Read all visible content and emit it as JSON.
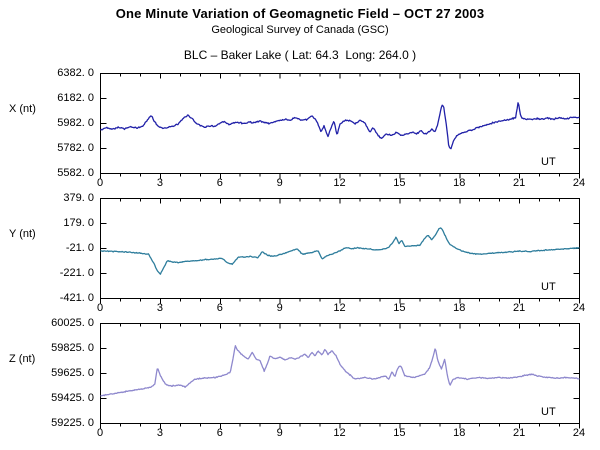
{
  "chart_data": {
    "type": "line",
    "title": "One Minute Variation of Geomagnetic Field – OCT 27 2003",
    "subtitle": "Geological Survey of Canada (GSC)",
    "station": "BLC – Baker Lake ( Lat: 64.3  Long: 264.0 )",
    "x": {
      "label": "UT",
      "range": [
        0,
        24
      ],
      "major_ticks": [
        0,
        3,
        6,
        9,
        12,
        15,
        18,
        21,
        24
      ],
      "minor_step": 1
    },
    "grid": false,
    "frame_color": "#000000",
    "panels": [
      {
        "id": "X",
        "ylabel": "X (nt)",
        "ylim": [
          5582,
          6382
        ],
        "ytick_values": [
          6382.0,
          6182.0,
          5982.0,
          5782.0,
          5582.0
        ],
        "ytick_labels": [
          "6382. 0",
          "6182. 0",
          "5982. 0",
          "5782. 0",
          "5582. 0"
        ],
        "color": "#2121a8",
        "noise_amp": 7,
        "seed": 42,
        "keypoints": [
          [
            0,
            5928
          ],
          [
            0.3,
            5950
          ],
          [
            0.6,
            5938
          ],
          [
            0.9,
            5952
          ],
          [
            1.2,
            5940
          ],
          [
            1.5,
            5955
          ],
          [
            1.8,
            5945
          ],
          [
            2.1,
            5958
          ],
          [
            2.35,
            6010
          ],
          [
            2.55,
            6048
          ],
          [
            2.7,
            5998
          ],
          [
            2.9,
            5958
          ],
          [
            3.1,
            5945
          ],
          [
            3.4,
            5952
          ],
          [
            3.7,
            5962
          ],
          [
            3.95,
            5985
          ],
          [
            4.15,
            6022
          ],
          [
            4.35,
            6048
          ],
          [
            4.55,
            6030
          ],
          [
            4.75,
            5990
          ],
          [
            5,
            5968
          ],
          [
            5.25,
            5952
          ],
          [
            5.5,
            5965
          ],
          [
            5.75,
            5958
          ],
          [
            6,
            5985
          ],
          [
            6.2,
            5995
          ],
          [
            6.45,
            5972
          ],
          [
            6.7,
            5988
          ],
          [
            6.95,
            5992
          ],
          [
            7.2,
            5980
          ],
          [
            7.45,
            5995
          ],
          [
            7.7,
            5988
          ],
          [
            7.95,
            6002
          ],
          [
            8.2,
            5992
          ],
          [
            8.45,
            5982
          ],
          [
            8.7,
            5995
          ],
          [
            9,
            6008
          ],
          [
            9.25,
            6015
          ],
          [
            9.5,
            6008
          ],
          [
            9.75,
            6030
          ],
          [
            10,
            6012
          ],
          [
            10.2,
            6006
          ],
          [
            10.4,
            6019
          ],
          [
            10.6,
            6046
          ],
          [
            10.85,
            5995
          ],
          [
            11.05,
            5915
          ],
          [
            11.2,
            5962
          ],
          [
            11.4,
            5875
          ],
          [
            11.55,
            5950
          ],
          [
            11.7,
            6005
          ],
          [
            11.85,
            5888
          ],
          [
            12,
            5978
          ],
          [
            12.25,
            6005
          ],
          [
            12.5,
            6005
          ],
          [
            12.75,
            5980
          ],
          [
            13,
            6005
          ],
          [
            13.25,
            5990
          ],
          [
            13.5,
            5912
          ],
          [
            13.65,
            5950
          ],
          [
            13.9,
            5888
          ],
          [
            14.1,
            5860
          ],
          [
            14.3,
            5898
          ],
          [
            14.6,
            5886
          ],
          [
            14.8,
            5912
          ],
          [
            15.1,
            5886
          ],
          [
            15.35,
            5900
          ],
          [
            15.6,
            5912
          ],
          [
            15.85,
            5898
          ],
          [
            16.05,
            5926
          ],
          [
            16.25,
            5898
          ],
          [
            16.45,
            5912
          ],
          [
            16.6,
            5938
          ],
          [
            16.75,
            5912
          ],
          [
            16.9,
            5978
          ],
          [
            17.1,
            6130
          ],
          [
            17.2,
            6110
          ],
          [
            17.32,
            5978
          ],
          [
            17.45,
            5800
          ],
          [
            17.55,
            5775
          ],
          [
            17.7,
            5850
          ],
          [
            17.85,
            5888
          ],
          [
            18,
            5898
          ],
          [
            18.3,
            5915
          ],
          [
            18.6,
            5930
          ],
          [
            18.9,
            5950
          ],
          [
            19.2,
            5962
          ],
          [
            19.5,
            5978
          ],
          [
            19.75,
            5992
          ],
          [
            20,
            6000
          ],
          [
            20.3,
            6010
          ],
          [
            20.6,
            6018
          ],
          [
            20.8,
            6030
          ],
          [
            20.93,
            6155
          ],
          [
            21.05,
            6040
          ],
          [
            21.2,
            6018
          ],
          [
            21.5,
            6012
          ],
          [
            21.8,
            6022
          ],
          [
            22.1,
            6015
          ],
          [
            22.4,
            6025
          ],
          [
            22.7,
            6018
          ],
          [
            23,
            6028
          ],
          [
            23.3,
            6020
          ],
          [
            23.6,
            6030
          ],
          [
            24,
            6032
          ]
        ]
      },
      {
        "id": "Y",
        "ylabel": "Y (nt)",
        "ylim": [
          -421,
          379
        ],
        "ytick_values": [
          379.0,
          179.0,
          -21.0,
          -221.0,
          -421.0
        ],
        "ytick_labels": [
          "379. 0",
          "179. 0",
          "-21. 0",
          "-221. 0",
          "-421. 0"
        ],
        "color": "#2e7d9c",
        "noise_amp": 4.5,
        "seed": 43,
        "keypoints": [
          [
            0,
            -39
          ],
          [
            0.5,
            -44
          ],
          [
            1,
            -47
          ],
          [
            1.5,
            -52
          ],
          [
            2,
            -58
          ],
          [
            2.4,
            -66
          ],
          [
            2.7,
            -147
          ],
          [
            2.85,
            -205
          ],
          [
            3,
            -225
          ],
          [
            3.15,
            -180
          ],
          [
            3.35,
            -119
          ],
          [
            3.6,
            -128
          ],
          [
            3.85,
            -133
          ],
          [
            4.25,
            -125
          ],
          [
            4.75,
            -119
          ],
          [
            5.25,
            -111
          ],
          [
            5.75,
            -106
          ],
          [
            6.1,
            -100
          ],
          [
            6.35,
            -135
          ],
          [
            6.6,
            -147
          ],
          [
            6.9,
            -92
          ],
          [
            7.2,
            -88
          ],
          [
            7.5,
            -85
          ],
          [
            7.9,
            -92
          ],
          [
            8.1,
            -47
          ],
          [
            8.35,
            -74
          ],
          [
            8.6,
            -85
          ],
          [
            9.1,
            -66
          ],
          [
            9.6,
            -39
          ],
          [
            9.85,
            -21
          ],
          [
            10.1,
            -66
          ],
          [
            10.6,
            -53
          ],
          [
            10.9,
            -39
          ],
          [
            11.1,
            -106
          ],
          [
            11.35,
            -79
          ],
          [
            11.6,
            -66
          ],
          [
            12,
            -39
          ],
          [
            12.3,
            -12
          ],
          [
            12.6,
            -22
          ],
          [
            12.9,
            -15
          ],
          [
            13.2,
            -22
          ],
          [
            13.5,
            -25
          ],
          [
            13.8,
            -32
          ],
          [
            14.1,
            -30
          ],
          [
            14.4,
            -17
          ],
          [
            14.65,
            25
          ],
          [
            14.8,
            70
          ],
          [
            14.95,
            20
          ],
          [
            15.1,
            45
          ],
          [
            15.25,
            -5
          ],
          [
            15.5,
            -2
          ],
          [
            15.75,
            2
          ],
          [
            16,
            5
          ],
          [
            16.25,
            60
          ],
          [
            16.4,
            85
          ],
          [
            16.6,
            50
          ],
          [
            16.75,
            80
          ],
          [
            16.95,
            135
          ],
          [
            17.05,
            147
          ],
          [
            17.2,
            105
          ],
          [
            17.35,
            53
          ],
          [
            17.5,
            13
          ],
          [
            17.75,
            -13
          ],
          [
            18,
            -32
          ],
          [
            18.25,
            -48
          ],
          [
            18.5,
            -58
          ],
          [
            19,
            -66
          ],
          [
            19.5,
            -61
          ],
          [
            20,
            -53
          ],
          [
            20.5,
            -48
          ],
          [
            21,
            -42
          ],
          [
            21.5,
            -45
          ],
          [
            22,
            -37
          ],
          [
            22.5,
            -32
          ],
          [
            23,
            -27
          ],
          [
            23.5,
            -22
          ],
          [
            24,
            -17
          ]
        ]
      },
      {
        "id": "Z",
        "ylabel": "Z (nt)",
        "ylim": [
          59225,
          60025
        ],
        "ytick_values": [
          60025.0,
          59825.0,
          59625.0,
          59425.0,
          59225.0
        ],
        "ytick_labels": [
          "60025. 0",
          "59825. 0",
          "59625. 0",
          "59425. 0",
          "59225. 0"
        ],
        "color": "#8e88cd",
        "noise_amp": 5,
        "seed": 44,
        "keypoints": [
          [
            0,
            59446
          ],
          [
            0.5,
            59460
          ],
          [
            1,
            59473
          ],
          [
            1.5,
            59487
          ],
          [
            2,
            59500
          ],
          [
            2.5,
            59513
          ],
          [
            2.72,
            59540
          ],
          [
            2.85,
            59673
          ],
          [
            3,
            59606
          ],
          [
            3.25,
            59540
          ],
          [
            3.5,
            59526
          ],
          [
            4,
            59531
          ],
          [
            4.25,
            59518
          ],
          [
            4.5,
            59553
          ],
          [
            4.75,
            59580
          ],
          [
            5.25,
            59588
          ],
          [
            5.75,
            59593
          ],
          [
            6.25,
            59614
          ],
          [
            6.5,
            59633
          ],
          [
            6.65,
            59750
          ],
          [
            6.75,
            59846
          ],
          [
            6.9,
            59806
          ],
          [
            7.15,
            59766
          ],
          [
            7.4,
            59740
          ],
          [
            7.6,
            59793
          ],
          [
            7.8,
            59740
          ],
          [
            8,
            59726
          ],
          [
            8.2,
            59646
          ],
          [
            8.35,
            59700
          ],
          [
            8.5,
            59766
          ],
          [
            8.75,
            59740
          ],
          [
            9,
            59758
          ],
          [
            9.25,
            59732
          ],
          [
            9.5,
            59753
          ],
          [
            9.75,
            59740
          ],
          [
            10,
            59758
          ],
          [
            10.25,
            59780
          ],
          [
            10.4,
            59753
          ],
          [
            10.6,
            59793
          ],
          [
            10.75,
            59766
          ],
          [
            10.9,
            59806
          ],
          [
            11.1,
            59774
          ],
          [
            11.25,
            59819
          ],
          [
            11.4,
            59780
          ],
          [
            11.6,
            59806
          ],
          [
            11.8,
            59766
          ],
          [
            12,
            59700
          ],
          [
            12.3,
            59640
          ],
          [
            12.6,
            59600
          ],
          [
            12.75,
            59580
          ],
          [
            13.25,
            59593
          ],
          [
            13.75,
            59580
          ],
          [
            14.25,
            59606
          ],
          [
            14.45,
            59580
          ],
          [
            14.6,
            59640
          ],
          [
            14.75,
            59600
          ],
          [
            14.9,
            59673
          ],
          [
            15.05,
            59685
          ],
          [
            15.25,
            59606
          ],
          [
            15.75,
            59593
          ],
          [
            16.25,
            59620
          ],
          [
            16.5,
            59673
          ],
          [
            16.65,
            59753
          ],
          [
            16.78,
            59830
          ],
          [
            16.9,
            59726
          ],
          [
            17.08,
            59660
          ],
          [
            17.25,
            59740
          ],
          [
            17.38,
            59606
          ],
          [
            17.5,
            59527
          ],
          [
            17.67,
            59580
          ],
          [
            17.9,
            59593
          ],
          [
            18.4,
            59580
          ],
          [
            18.9,
            59593
          ],
          [
            19.4,
            59585
          ],
          [
            19.9,
            59593
          ],
          [
            20.4,
            59588
          ],
          [
            20.9,
            59598
          ],
          [
            21.4,
            59614
          ],
          [
            21.65,
            59620
          ],
          [
            21.9,
            59604
          ],
          [
            22.4,
            59593
          ],
          [
            22.9,
            59588
          ],
          [
            23.4,
            59593
          ],
          [
            24,
            59585
          ]
        ]
      }
    ]
  }
}
